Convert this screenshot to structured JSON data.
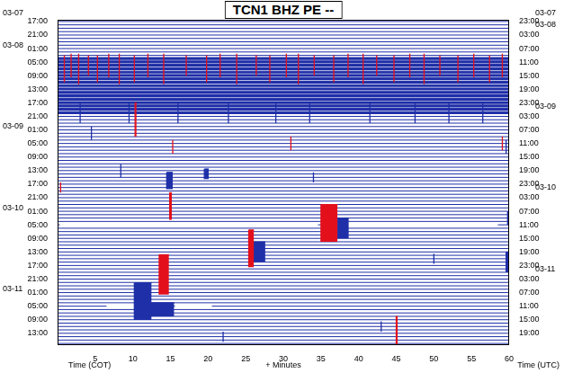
{
  "chart_data": {
    "type": "helicorder",
    "title": "TCN1 BHZ PE --",
    "x_label": "+ Minutes",
    "y_label": "Time (COT)",
    "y2_label": "Time (UTC)",
    "grid": false,
    "xlim": [
      0,
      60
    ],
    "xticks": [
      5,
      10,
      15,
      20,
      25,
      30,
      35,
      40,
      45,
      50,
      55,
      60
    ],
    "ylim": [
      -0.5,
      95.5
    ],
    "yticks": [
      {
        "value": 0,
        "label": "17:00"
      },
      {
        "value": 4,
        "label": "21:00"
      },
      {
        "value": 8,
        "label": "01:00"
      },
      {
        "value": 12,
        "label": "05:00"
      },
      {
        "value": 16,
        "label": "09:00"
      },
      {
        "value": 20,
        "label": "13:00"
      },
      {
        "value": 24,
        "label": "17:00"
      },
      {
        "value": 28,
        "label": "21:00"
      },
      {
        "value": 32,
        "label": "01:00"
      },
      {
        "value": 36,
        "label": "05:00"
      },
      {
        "value": 40,
        "label": "09:00"
      },
      {
        "value": 44,
        "label": "13:00"
      },
      {
        "value": 48,
        "label": "17:00"
      },
      {
        "value": 52,
        "label": "21:00"
      },
      {
        "value": 56,
        "label": "01:00"
      },
      {
        "value": 60,
        "label": "05:00"
      },
      {
        "value": 64,
        "label": "09:00"
      },
      {
        "value": 68,
        "label": "13:00"
      },
      {
        "value": 72,
        "label": "17:00"
      },
      {
        "value": 76,
        "label": "21:00"
      },
      {
        "value": 80,
        "label": "01:00"
      },
      {
        "value": 84,
        "label": "05:00"
      },
      {
        "value": 88,
        "label": "09:00"
      },
      {
        "value": 92,
        "label": "13:00"
      }
    ],
    "y2lim": [
      -0.5,
      95.5
    ],
    "y2ticks": [
      {
        "value": 0,
        "label": "23:00"
      },
      {
        "value": 4,
        "label": "03:00"
      },
      {
        "value": 8,
        "label": "07:00"
      },
      {
        "value": 12,
        "label": "11:00"
      },
      {
        "value": 16,
        "label": "15:00"
      },
      {
        "value": 20,
        "label": "19:00"
      },
      {
        "value": 24,
        "label": "23:00"
      },
      {
        "value": 28,
        "label": "03:00"
      },
      {
        "value": 32,
        "label": "07:00"
      },
      {
        "value": 36,
        "label": "11:00"
      },
      {
        "value": 40,
        "label": "15:00"
      },
      {
        "value": 44,
        "label": "19:00"
      },
      {
        "value": 48,
        "label": "23:00"
      },
      {
        "value": 52,
        "label": "03:00"
      },
      {
        "value": 56,
        "label": "07:00"
      },
      {
        "value": 60,
        "label": "11:00"
      },
      {
        "value": 64,
        "label": "15:00"
      },
      {
        "value": 68,
        "label": "19:00"
      },
      {
        "value": 72,
        "label": "23:00"
      },
      {
        "value": 76,
        "label": "03:00"
      },
      {
        "value": 80,
        "label": "07:00"
      },
      {
        "value": 84,
        "label": "11:00"
      },
      {
        "value": 88,
        "label": "15:00"
      },
      {
        "value": 92,
        "label": "19:00"
      }
    ],
    "date_labels": {
      "left": [
        {
          "y": -2.5,
          "label": "03-07"
        },
        {
          "y": 7,
          "label": "03-08"
        },
        {
          "y": 31,
          "label": "03-09"
        },
        {
          "y": 55,
          "label": "03-10"
        },
        {
          "y": 79,
          "label": "03-11"
        }
      ],
      "right": [
        {
          "y": -2.5,
          "label": "03-07"
        },
        {
          "y": 1,
          "label": "03-08"
        },
        {
          "y": 25,
          "label": "03-09"
        },
        {
          "y": 49,
          "label": "03-10"
        },
        {
          "y": 73,
          "label": "03-11"
        }
      ]
    },
    "color": "#1f2fa8",
    "trace_rows": [
      0,
      1,
      2,
      3,
      4,
      5,
      6,
      7,
      8,
      9,
      10,
      11,
      12,
      13,
      14,
      15,
      16,
      17,
      18,
      19,
      20,
      21,
      22,
      23,
      24,
      25,
      26,
      27,
      28,
      29,
      30,
      31,
      32,
      33,
      34,
      35,
      36,
      37,
      38,
      39,
      40,
      41,
      42,
      43,
      44,
      45,
      46,
      47,
      48,
      49,
      50,
      51,
      52,
      53,
      54,
      55,
      56,
      57,
      58,
      59,
      60,
      61,
      62,
      63,
      64,
      65,
      66,
      67,
      68,
      69,
      70,
      71,
      72,
      73,
      74,
      75,
      76,
      77,
      78,
      79,
      80,
      81,
      82,
      83,
      84,
      85,
      86,
      87,
      88,
      89,
      90,
      91,
      92,
      93,
      94,
      95
    ],
    "gaps": [
      {
        "row": 60,
        "from": 0.3,
        "to": 34.6
      },
      {
        "row": 60,
        "from": 38,
        "to": 58.5
      },
      {
        "row": 84,
        "from": 6.5,
        "to": 14.8
      },
      {
        "row": 84,
        "from": 15.6,
        "to": 20.5
      }
    ],
    "events": [
      {
        "row": 11,
        "minute": 0,
        "duration": 60,
        "amplitude": 0.35,
        "color": "#1f2fa8"
      },
      {
        "row": 12,
        "minute": 0,
        "duration": 60,
        "amplitude": 0.35,
        "color": "#1f2fa8"
      },
      {
        "row": 13,
        "minute": 0,
        "duration": 60,
        "amplitude": 0.35,
        "color": "#1f2fa8"
      },
      {
        "row": 14,
        "minute": 0,
        "duration": 60,
        "amplitude": 0.35,
        "color": "#1f2fa8"
      },
      {
        "row": 15,
        "minute": 0,
        "duration": 60,
        "amplitude": 0.35,
        "color": "#1f2fa8"
      },
      {
        "row": 16,
        "minute": 0,
        "duration": 60,
        "amplitude": 0.35,
        "color": "#1f2fa8"
      },
      {
        "row": 17,
        "minute": 0,
        "duration": 60,
        "amplitude": 0.35,
        "color": "#1f2fa8"
      },
      {
        "row": 18,
        "minute": 0,
        "duration": 60,
        "amplitude": 0.35,
        "color": "#1f2fa8"
      },
      {
        "row": 19,
        "minute": 0,
        "duration": 60,
        "amplitude": 0.35,
        "color": "#1f2fa8"
      },
      {
        "row": 20,
        "minute": 0,
        "duration": 60,
        "amplitude": 0.35,
        "color": "#1f2fa8"
      },
      {
        "row": 21,
        "minute": 0,
        "duration": 60,
        "amplitude": 0.35,
        "color": "#1f2fa8"
      },
      {
        "row": 22,
        "minute": 0,
        "duration": 60,
        "amplitude": 0.35,
        "color": "#1f2fa8"
      },
      {
        "row": 23,
        "minute": 0,
        "duration": 60,
        "amplitude": 0.35,
        "color": "#1f2fa8"
      },
      {
        "row": 24,
        "minute": 0,
        "duration": 60,
        "amplitude": 0.35,
        "color": "#1f2fa8"
      },
      {
        "row": 25,
        "minute": 0,
        "duration": 60,
        "amplitude": 0.35,
        "color": "#1f2fa8"
      },
      {
        "row": 26,
        "minute": 0,
        "duration": 60,
        "amplitude": 0.35,
        "color": "#1f2fa8"
      },
      {
        "row": 27,
        "minute": 0,
        "duration": 60,
        "amplitude": 0.35,
        "color": "#1f2fa8"
      },
      {
        "row": 14,
        "minute": 0.9,
        "duration": 0,
        "amplitude": 4,
        "color": "#e3101c"
      },
      {
        "row": 13,
        "minute": 1.8,
        "duration": 0,
        "amplitude": 3.5,
        "color": "#e3101c"
      },
      {
        "row": 14,
        "minute": 2.8,
        "duration": 0,
        "amplitude": 4.5,
        "color": "#e3101c"
      },
      {
        "row": 13,
        "minute": 4.1,
        "duration": 0,
        "amplitude": 3,
        "color": "#e3101c"
      },
      {
        "row": 14,
        "minute": 5.3,
        "duration": 0,
        "amplitude": 4,
        "color": "#e3101c"
      },
      {
        "row": 13,
        "minute": 6.8,
        "duration": 0,
        "amplitude": 3.5,
        "color": "#e3101c"
      },
      {
        "row": 14,
        "minute": 8.2,
        "duration": 0,
        "amplitude": 4.5,
        "color": "#e3101c"
      },
      {
        "row": 14,
        "minute": 10.2,
        "duration": 0,
        "amplitude": 4,
        "color": "#e3101c"
      },
      {
        "row": 13,
        "minute": 12,
        "duration": 0,
        "amplitude": 3.5,
        "color": "#e3101c"
      },
      {
        "row": 14,
        "minute": 14.1,
        "duration": 0,
        "amplitude": 4.5,
        "color": "#e3101c"
      },
      {
        "row": 13,
        "minute": 17.1,
        "duration": 0,
        "amplitude": 3,
        "color": "#e3101c"
      },
      {
        "row": 14,
        "minute": 19.8,
        "duration": 0,
        "amplitude": 4,
        "color": "#e3101c"
      },
      {
        "row": 13,
        "minute": 21.6,
        "duration": 0,
        "amplitude": 3.5,
        "color": "#e3101c"
      },
      {
        "row": 14,
        "minute": 23.8,
        "duration": 0,
        "amplitude": 4.5,
        "color": "#e3101c"
      },
      {
        "row": 13,
        "minute": 26.4,
        "duration": 0,
        "amplitude": 3,
        "color": "#e3101c"
      },
      {
        "row": 14,
        "minute": 28.2,
        "duration": 0,
        "amplitude": 4,
        "color": "#e3101c"
      },
      {
        "row": 13,
        "minute": 30.4,
        "duration": 0,
        "amplitude": 3.5,
        "color": "#e3101c"
      },
      {
        "row": 14,
        "minute": 32,
        "duration": 0,
        "amplitude": 4.5,
        "color": "#e3101c"
      },
      {
        "row": 13,
        "minute": 34.1,
        "duration": 0,
        "amplitude": 3,
        "color": "#e3101c"
      },
      {
        "row": 14,
        "minute": 36.7,
        "duration": 0,
        "amplitude": 4,
        "color": "#e3101c"
      },
      {
        "row": 13,
        "minute": 38.6,
        "duration": 0,
        "amplitude": 3.5,
        "color": "#e3101c"
      },
      {
        "row": 14,
        "minute": 40.6,
        "duration": 0,
        "amplitude": 4.5,
        "color": "#e3101c"
      },
      {
        "row": 13,
        "minute": 42.4,
        "duration": 0,
        "amplitude": 3,
        "color": "#e3101c"
      },
      {
        "row": 14,
        "minute": 44.7,
        "duration": 0,
        "amplitude": 4,
        "color": "#e3101c"
      },
      {
        "row": 13,
        "minute": 46.8,
        "duration": 0,
        "amplitude": 3.5,
        "color": "#e3101c"
      },
      {
        "row": 14,
        "minute": 48.7,
        "duration": 0,
        "amplitude": 4.5,
        "color": "#e3101c"
      },
      {
        "row": 13,
        "minute": 50.8,
        "duration": 0,
        "amplitude": 3,
        "color": "#e3101c"
      },
      {
        "row": 14,
        "minute": 53.2,
        "duration": 0,
        "amplitude": 4,
        "color": "#e3101c"
      },
      {
        "row": 13,
        "minute": 55.3,
        "duration": 0,
        "amplitude": 3.5,
        "color": "#e3101c"
      },
      {
        "row": 14,
        "minute": 57.4,
        "duration": 0,
        "amplitude": 4,
        "color": "#e3101c"
      },
      {
        "row": 13,
        "minute": 59.1,
        "duration": 0,
        "amplitude": 3.5,
        "color": "#e3101c"
      },
      {
        "row": 27,
        "minute": 3,
        "duration": 0,
        "amplitude": 3,
        "color": "#1f2fa8"
      },
      {
        "row": 27,
        "minute": 9.5,
        "duration": 0,
        "amplitude": 3,
        "color": "#1f2fa8"
      },
      {
        "row": 27,
        "minute": 16,
        "duration": 0,
        "amplitude": 3,
        "color": "#1f2fa8"
      },
      {
        "row": 27,
        "minute": 22.7,
        "duration": 0,
        "amplitude": 3,
        "color": "#1f2fa8"
      },
      {
        "row": 27,
        "minute": 29,
        "duration": 0,
        "amplitude": 3,
        "color": "#1f2fa8"
      },
      {
        "row": 27,
        "minute": 33.5,
        "duration": 0,
        "amplitude": 3,
        "color": "#1f2fa8"
      },
      {
        "row": 27,
        "minute": 41.5,
        "duration": 0,
        "amplitude": 3,
        "color": "#1f2fa8"
      },
      {
        "row": 27,
        "minute": 47.5,
        "duration": 0,
        "amplitude": 3,
        "color": "#1f2fa8"
      },
      {
        "row": 27,
        "minute": 52,
        "duration": 0,
        "amplitude": 3,
        "color": "#1f2fa8"
      },
      {
        "row": 27,
        "minute": 56.5,
        "duration": 0,
        "amplitude": 3,
        "color": "#1f2fa8"
      },
      {
        "row": 29,
        "minute": 10.3,
        "duration": 0.2,
        "amplitude": 5,
        "color": "#e3101c"
      },
      {
        "row": 33,
        "minute": 4.5,
        "duration": 0,
        "amplitude": 2,
        "color": "#1f2fa8"
      },
      {
        "row": 36,
        "minute": 31,
        "duration": 0,
        "amplitude": 2,
        "color": "#e3101c"
      },
      {
        "row": 37,
        "minute": 15.3,
        "duration": 0,
        "amplitude": 2,
        "color": "#e3101c"
      },
      {
        "row": 36,
        "minute": 59.1,
        "duration": 0,
        "amplitude": 2,
        "color": "#e3101c"
      },
      {
        "row": 37,
        "minute": 59.6,
        "duration": 0,
        "amplitude": 2,
        "color": "#1f2fa8"
      },
      {
        "row": 44,
        "minute": 8.4,
        "duration": 0,
        "amplitude": 2,
        "color": "#1f2fa8"
      },
      {
        "row": 45,
        "minute": 19.5,
        "duration": 0.6,
        "amplitude": 1.5,
        "color": "#1f2fa8"
      },
      {
        "row": 46,
        "minute": 34,
        "duration": 0,
        "amplitude": 1.5,
        "color": "#1f2fa8"
      },
      {
        "row": 47,
        "minute": 14.5,
        "duration": 0.8,
        "amplitude": 2.5,
        "color": "#1f2fa8"
      },
      {
        "row": 49,
        "minute": 0.4,
        "duration": 0,
        "amplitude": 1.5,
        "color": "#e3101c"
      },
      {
        "row": 54.5,
        "minute": 14.9,
        "duration": 0.3,
        "amplitude": 4,
        "color": "#e3101c"
      },
      {
        "row": 58,
        "minute": 59.8,
        "duration": 0,
        "amplitude": 2,
        "color": "#1f2fa8"
      },
      {
        "row": 59.5,
        "minute": 35,
        "duration": 2.2,
        "amplitude": 5.5,
        "color": "#e3101c"
      },
      {
        "row": 61,
        "minute": 37.2,
        "duration": 1.5,
        "amplitude": 3,
        "color": "#1f2fa8"
      },
      {
        "row": 67,
        "minute": 25.4,
        "duration": 0.7,
        "amplitude": 5.5,
        "color": "#e3101c"
      },
      {
        "row": 68,
        "minute": 26.1,
        "duration": 1.5,
        "amplitude": 3,
        "color": "#1f2fa8"
      },
      {
        "row": 70,
        "minute": 50,
        "duration": 0,
        "amplitude": 1.5,
        "color": "#1f2fa8"
      },
      {
        "row": 71,
        "minute": 59.6,
        "duration": 0.4,
        "amplitude": 3,
        "color": "#1f2fa8"
      },
      {
        "row": 74.7,
        "minute": 13.5,
        "duration": 1.3,
        "amplitude": 5.9,
        "color": "#e3101c"
      },
      {
        "row": 82.6,
        "minute": 10.2,
        "duration": 2.3,
        "amplitude": 5.5,
        "color": "#1f2fa8"
      },
      {
        "row": 85,
        "minute": 12.5,
        "duration": 3,
        "amplitude": 2,
        "color": "#1f2fa8"
      },
      {
        "row": 90,
        "minute": 43,
        "duration": 0,
        "amplitude": 1.5,
        "color": "#1f2fa8"
      },
      {
        "row": 93,
        "minute": 22,
        "duration": 0,
        "amplitude": 1.5,
        "color": "#1f2fa8"
      },
      {
        "row": 94,
        "minute": 45,
        "duration": 0.2,
        "amplitude": 7,
        "color": "#e3101c"
      }
    ]
  }
}
